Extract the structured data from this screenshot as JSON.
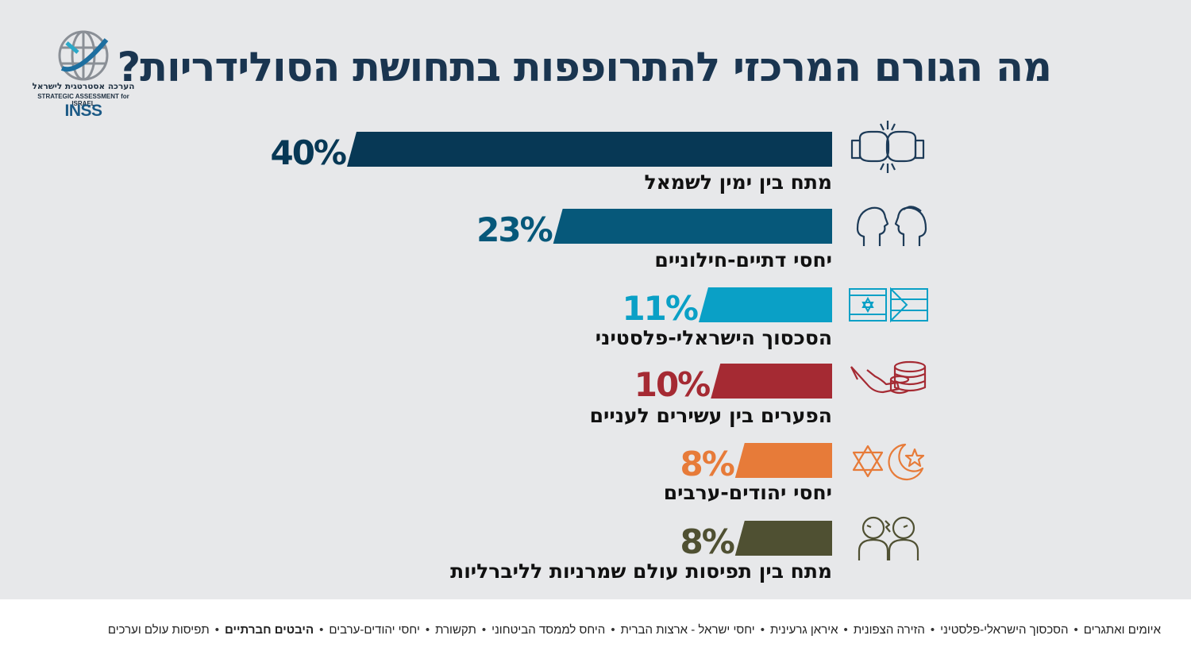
{
  "title": "מה הגורם המרכזי להתרופפות בתחושת הסולידריות?",
  "logo": {
    "hebrew": "הערכה אסטרטגית לישראל",
    "english": "STRATEGIC ASSESSMENT for ISRAEL",
    "mark": "INSS"
  },
  "chart_data": {
    "type": "bar",
    "orientation": "horizontal",
    "title": "מה הגורם המרכזי להתרופפות בתחושת הסולידריות?",
    "value_suffix": "%",
    "xlim": [
      0,
      40
    ],
    "categories": [
      "מתח בין ימין לשמאל",
      "יחסי דתיים-חילוניים",
      "הסכסוך הישראלי-פלסטיני",
      "הפערים בין עשירים לעניים",
      "יחסי יהודים-ערבים",
      "מתח בין תפיסות עולם שמרניות לליברליות"
    ],
    "values": [
      40,
      23,
      11,
      10,
      8,
      8
    ],
    "value_labels": [
      "40%",
      "23%",
      "11%",
      "10%",
      "8%",
      "8%"
    ],
    "colors": [
      "#073855",
      "#06587a",
      "#0aa0c6",
      "#a52a33",
      "#e77b39",
      "#4f5032"
    ],
    "icons": [
      "boxing-gloves-icon",
      "two-heads-icon",
      "flags-icon",
      "hand-coins-icon",
      "star-crescent-icon",
      "arguing-people-icon"
    ],
    "grid": false,
    "legend": "none"
  },
  "footer": {
    "items": [
      "איומים ואתגרים",
      "הסכסוך הישראלי-פלסטיני",
      "הזירה הצפונית",
      "איראן גרעינית",
      "יחסי ישראל - ארצות הברית",
      "היחס לממסד הביטחוני",
      "תקשורת",
      "יחסי יהודים-ערבים",
      "היבטים חברתיים",
      "תפיסות עולם וערכים"
    ],
    "active": "היבטים חברתיים",
    "separator": "•"
  }
}
